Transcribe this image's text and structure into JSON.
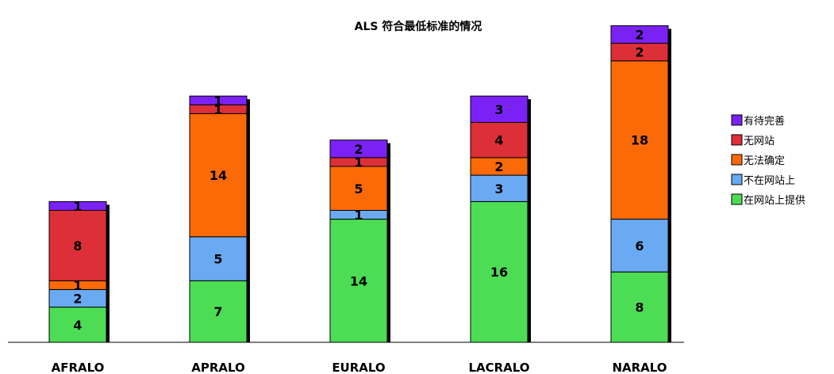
{
  "chart_data": {
    "type": "bar",
    "stacked": true,
    "title": "ALS 符合最低标准的情况",
    "xlabel": "",
    "ylabel": "",
    "ylim": [
      0,
      37.5
    ],
    "grid": false,
    "legend_position": "right",
    "categories": [
      "AFRALO",
      "APRALO",
      "EURALO",
      "LACRALO",
      "NARALO"
    ],
    "series": [
      {
        "name": "在网站上提供",
        "color": "#4ddd55",
        "values": [
          4,
          7,
          14,
          16,
          8
        ]
      },
      {
        "name": "不在网站上",
        "color": "#6aaaf2",
        "values": [
          2,
          5,
          1,
          3,
          6
        ]
      },
      {
        "name": "无法确定",
        "color": "#fb6a06",
        "values": [
          1,
          14,
          5,
          2,
          18
        ]
      },
      {
        "name": "无网站",
        "color": "#dd2f38",
        "values": [
          8,
          1,
          1,
          4,
          2
        ]
      },
      {
        "name": "有待完善",
        "color": "#7a22f6",
        "values": [
          1,
          1,
          2,
          3,
          2
        ]
      }
    ],
    "legend_order": [
      "有待完善",
      "无网站",
      "无法确定",
      "不在网站上",
      "在网站上提供"
    ]
  }
}
